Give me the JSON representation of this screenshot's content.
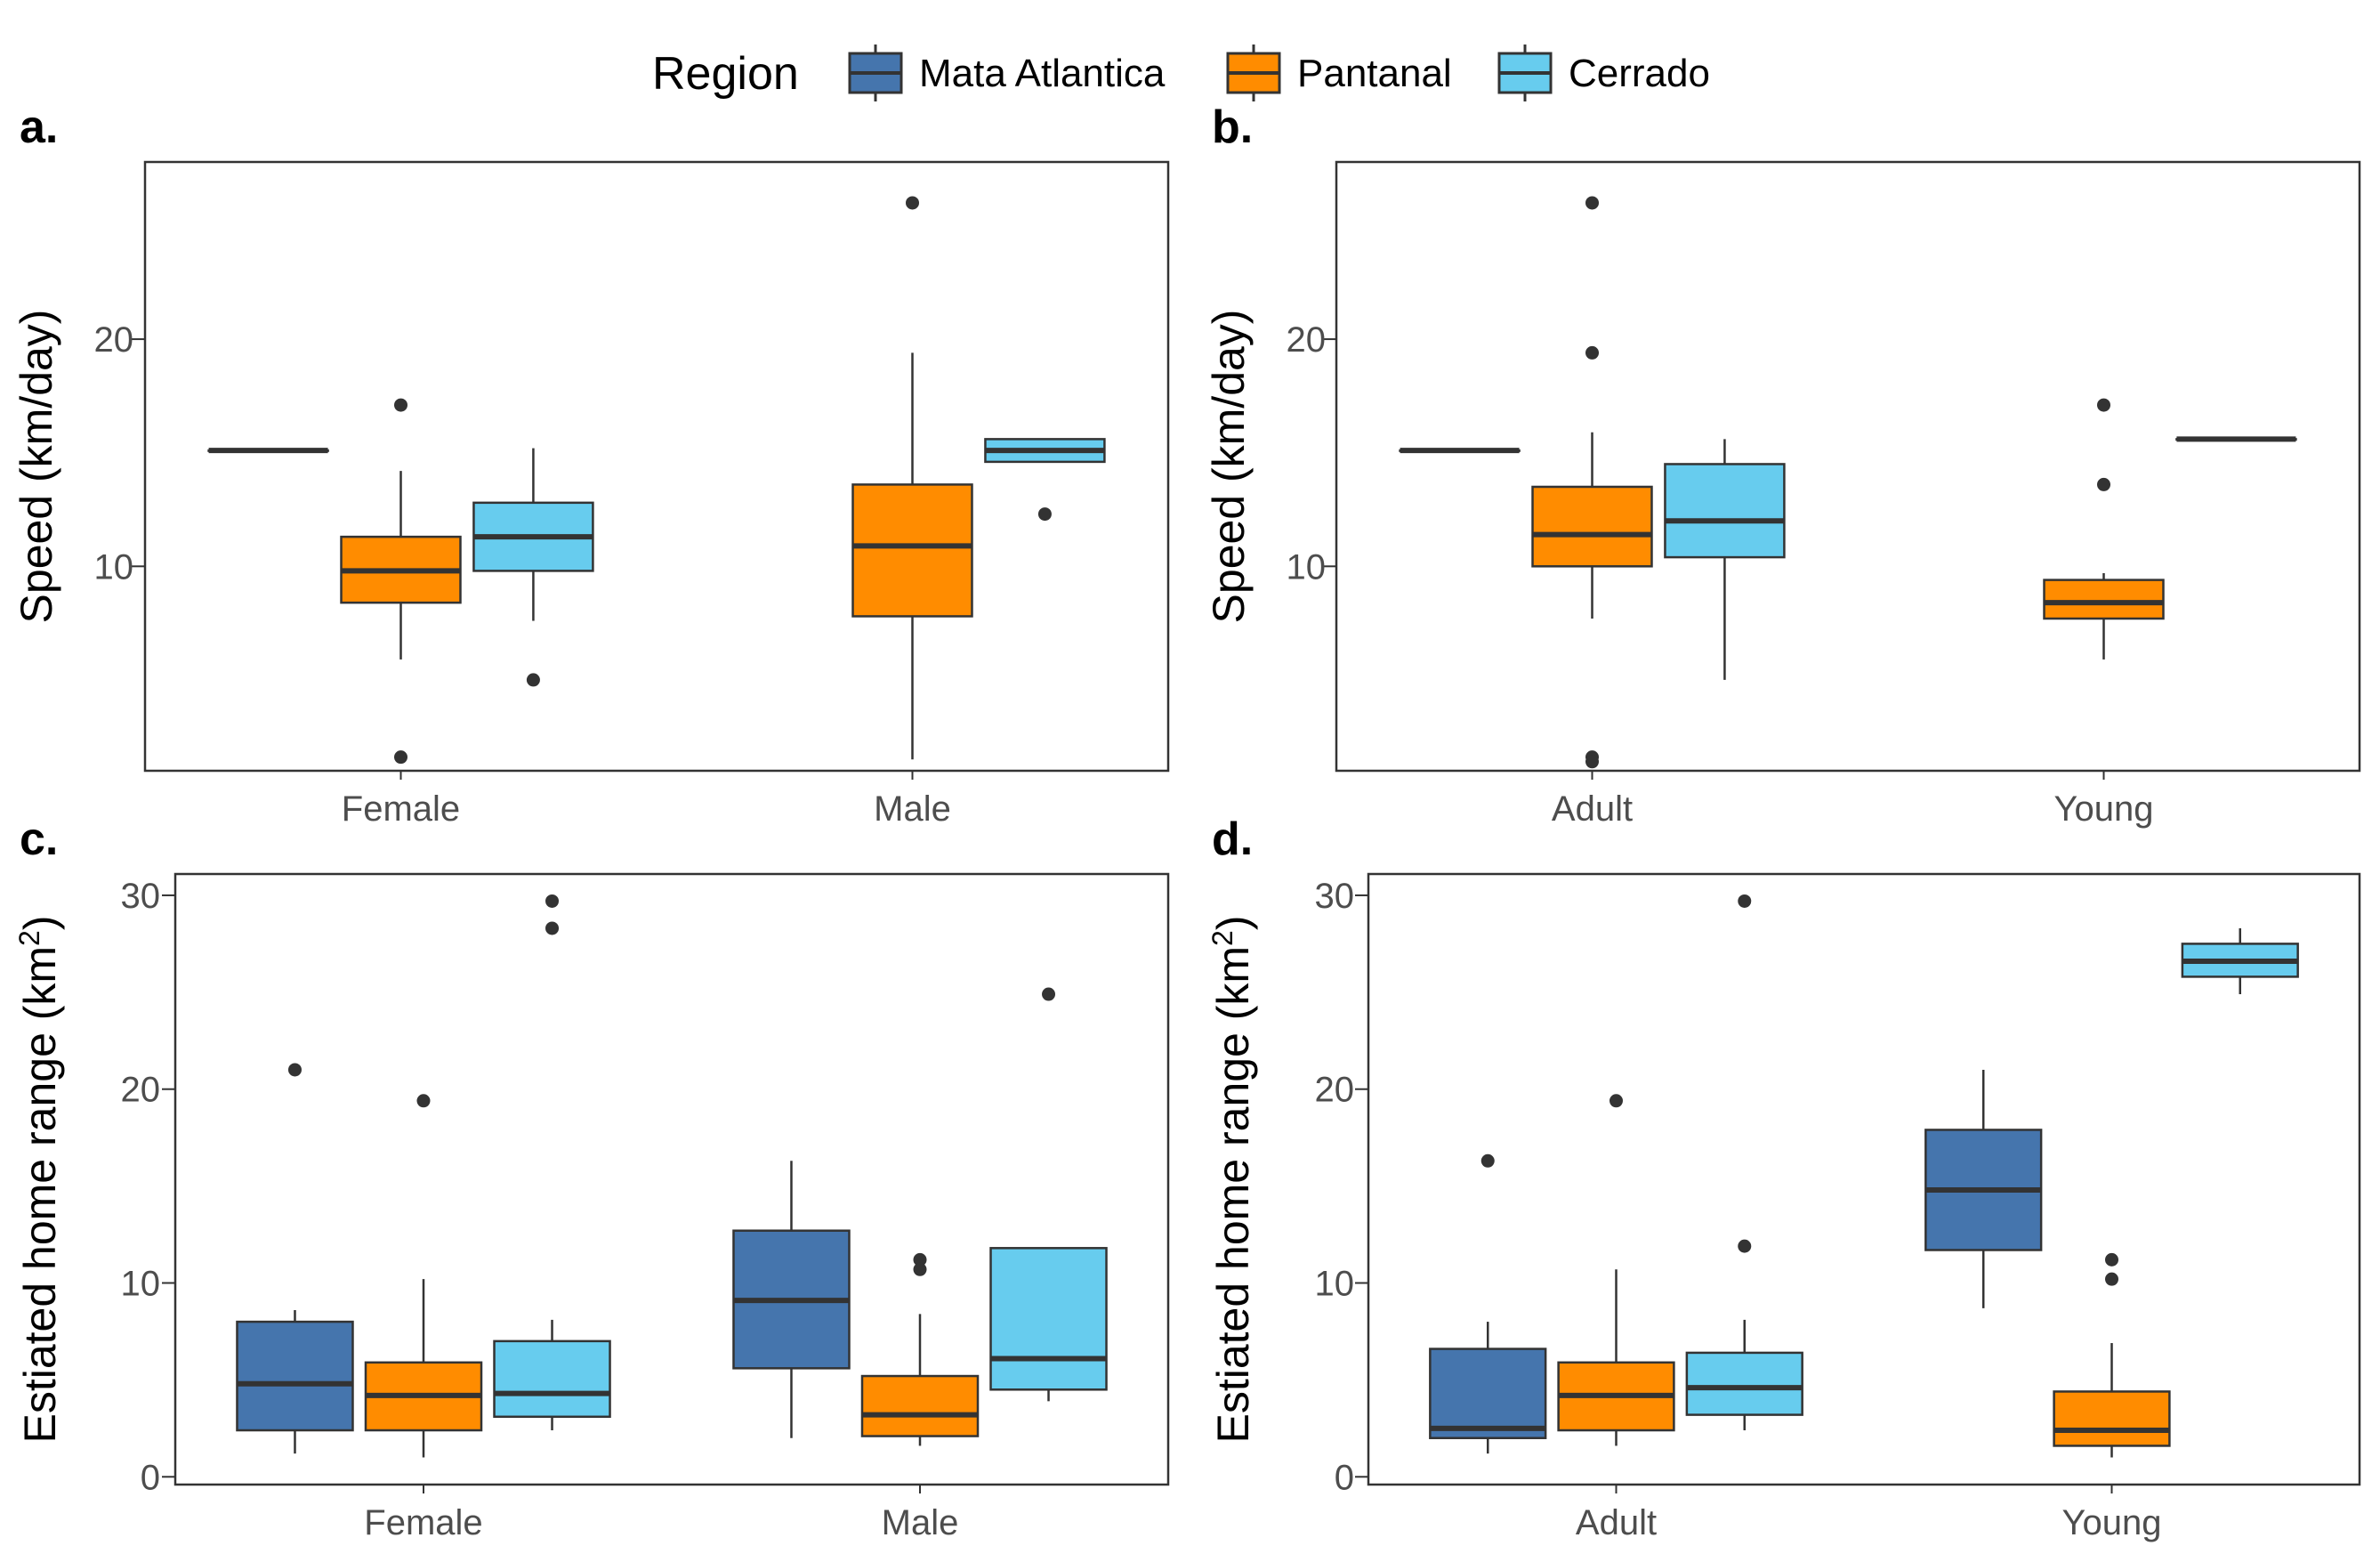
{
  "legend": {
    "title": "Region",
    "items": [
      {
        "label": "Mata Atlantica",
        "color": "#4575ad"
      },
      {
        "label": "Pantanal",
        "color": "#ff8c00"
      },
      {
        "label": "Cerrado",
        "color": "#67ccee"
      }
    ]
  },
  "chart_data": [
    {
      "type": "box",
      "panel_label": "a.",
      "ylabel": "Speed (km/day)",
      "ylabel_sup": "",
      "ylabel_after": "",
      "ylim": [
        1,
        27.8
      ],
      "yticks": [
        10,
        20
      ],
      "categories": [
        "Female",
        "Male"
      ],
      "groups": [
        {
          "category": "Female",
          "series": "Mata Atlantica",
          "min": 15.1,
          "q1": 15.1,
          "median": 15.1,
          "q3": 15.1,
          "max": 15.1,
          "outliers": []
        },
        {
          "category": "Female",
          "series": "Pantanal",
          "min": 5.9,
          "q1": 8.4,
          "median": 9.8,
          "q3": 11.3,
          "max": 14.2,
          "outliers": [
            17.1,
            1.6
          ]
        },
        {
          "category": "Female",
          "series": "Cerrado",
          "min": 7.6,
          "q1": 9.8,
          "median": 11.3,
          "q3": 12.8,
          "max": 15.2,
          "outliers": [
            5.0
          ]
        },
        {
          "category": "Male",
          "series": "Pantanal",
          "min": 1.5,
          "q1": 7.8,
          "median": 10.9,
          "q3": 13.6,
          "max": 19.4,
          "outliers": [
            26.0
          ]
        },
        {
          "category": "Male",
          "series": "Cerrado",
          "min": 14.6,
          "q1": 14.6,
          "median": 15.1,
          "q3": 15.6,
          "max": 15.6,
          "outliers": [
            12.3
          ]
        }
      ]
    },
    {
      "type": "box",
      "panel_label": "b.",
      "ylabel": "Speed (km/day)",
      "ylabel_sup": "",
      "ylabel_after": "",
      "ylim": [
        1,
        27.8
      ],
      "yticks": [
        10,
        20
      ],
      "categories": [
        "Adult",
        "Young"
      ],
      "groups": [
        {
          "category": "Adult",
          "series": "Mata Atlantica",
          "min": 15.1,
          "q1": 15.1,
          "median": 15.1,
          "q3": 15.1,
          "max": 15.1,
          "outliers": []
        },
        {
          "category": "Adult",
          "series": "Pantanal",
          "min": 7.7,
          "q1": 10.0,
          "median": 11.4,
          "q3": 13.5,
          "max": 15.9,
          "outliers": [
            26.0,
            19.4,
            1.6,
            1.4
          ]
        },
        {
          "category": "Adult",
          "series": "Cerrado",
          "min": 5.0,
          "q1": 10.4,
          "median": 12.0,
          "q3": 14.5,
          "max": 15.6,
          "outliers": []
        },
        {
          "category": "Young",
          "series": "Pantanal",
          "min": 5.9,
          "q1": 7.7,
          "median": 8.4,
          "q3": 9.4,
          "max": 9.7,
          "outliers": [
            17.1,
            13.6
          ]
        },
        {
          "category": "Young",
          "series": "Cerrado",
          "min": 15.6,
          "q1": 15.6,
          "median": 15.6,
          "q3": 15.6,
          "max": 15.6,
          "outliers": []
        }
      ]
    },
    {
      "type": "box",
      "panel_label": "c.",
      "ylabel": "Estiated home range (km",
      "ylabel_sup": "2",
      "ylabel_after": ")",
      "ylim": [
        -0.4,
        31.1
      ],
      "yticks": [
        0,
        10,
        20,
        30
      ],
      "categories": [
        "Female",
        "Male"
      ],
      "groups": [
        {
          "category": "Female",
          "series": "Mata Atlantica",
          "min": 1.2,
          "q1": 2.4,
          "median": 4.8,
          "q3": 8.0,
          "max": 8.6,
          "outliers": [
            21.0
          ]
        },
        {
          "category": "Female",
          "series": "Pantanal",
          "min": 1.0,
          "q1": 2.4,
          "median": 4.2,
          "q3": 5.9,
          "max": 10.2,
          "outliers": [
            19.4
          ]
        },
        {
          "category": "Female",
          "series": "Cerrado",
          "min": 2.4,
          "q1": 3.1,
          "median": 4.3,
          "q3": 7.0,
          "max": 8.1,
          "outliers": [
            29.7,
            28.3
          ]
        },
        {
          "category": "Male",
          "series": "Mata Atlantica",
          "min": 2.0,
          "q1": 5.6,
          "median": 9.1,
          "q3": 12.7,
          "max": 16.3,
          "outliers": []
        },
        {
          "category": "Male",
          "series": "Pantanal",
          "min": 1.6,
          "q1": 2.1,
          "median": 3.2,
          "q3": 5.2,
          "max": 8.4,
          "outliers": [
            11.2,
            10.7
          ]
        },
        {
          "category": "Male",
          "series": "Cerrado",
          "min": 3.9,
          "q1": 4.5,
          "median": 6.1,
          "q3": 11.8,
          "max": 11.8,
          "outliers": [
            24.9
          ]
        }
      ]
    },
    {
      "type": "box",
      "panel_label": "d.",
      "ylabel": "Estiated home range (km",
      "ylabel_sup": "2",
      "ylabel_after": ")",
      "ylim": [
        -0.4,
        31.1
      ],
      "yticks": [
        0,
        10,
        20,
        30
      ],
      "categories": [
        "Adult",
        "Young"
      ],
      "groups": [
        {
          "category": "Adult",
          "series": "Mata Atlantica",
          "min": 1.2,
          "q1": 2.0,
          "median": 2.5,
          "q3": 6.6,
          "max": 8.0,
          "outliers": [
            16.3
          ]
        },
        {
          "category": "Adult",
          "series": "Pantanal",
          "min": 1.6,
          "q1": 2.4,
          "median": 4.2,
          "q3": 5.9,
          "max": 10.7,
          "outliers": [
            19.4
          ]
        },
        {
          "category": "Adult",
          "series": "Cerrado",
          "min": 2.4,
          "q1": 3.2,
          "median": 4.6,
          "q3": 6.4,
          "max": 8.1,
          "outliers": [
            29.7,
            11.9
          ]
        },
        {
          "category": "Young",
          "series": "Mata Atlantica",
          "min": 8.7,
          "q1": 11.7,
          "median": 14.8,
          "q3": 17.9,
          "max": 21.0,
          "outliers": []
        },
        {
          "category": "Young",
          "series": "Pantanal",
          "min": 1.0,
          "q1": 1.6,
          "median": 2.4,
          "q3": 4.4,
          "max": 6.9,
          "outliers": [
            11.2,
            10.2
          ]
        },
        {
          "category": "Young",
          "series": "Cerrado",
          "min": 24.9,
          "q1": 25.8,
          "median": 26.6,
          "q3": 27.5,
          "max": 28.3,
          "outliers": []
        }
      ]
    }
  ]
}
